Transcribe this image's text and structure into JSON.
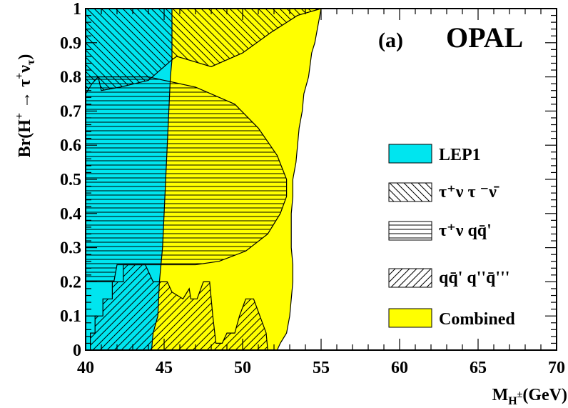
{
  "chart_data": {
    "type": "area",
    "title": "",
    "panel_label": "(a)",
    "experiment_label": "OPAL",
    "xlabel": "M",
    "xlabel_sub": "H",
    "xlabel_sup": "±",
    "xlabel_units": "(GeV)",
    "ylabel": "Br(H",
    "ylabel_sup": "+",
    "ylabel_arrow": " → τ",
    "ylabel_sup2": "+",
    "ylabel_nu": "ν",
    "ylabel_sub": "τ",
    "ylabel_close": ")",
    "xlim": [
      40,
      70
    ],
    "ylim": [
      0,
      1
    ],
    "x_ticks": [
      "40",
      "45",
      "50",
      "55",
      "60",
      "65",
      "70"
    ],
    "y_ticks": [
      "0",
      "0.1",
      "0.2",
      "0.3",
      "0.4",
      "0.5",
      "0.6",
      "0.7",
      "0.8",
      "0.9",
      "1"
    ],
    "colors": {
      "lep1": "#00e5ef",
      "combined": "#ffff00",
      "line": "#000000"
    },
    "legend_entries": {
      "lep1": "LEP1",
      "tautau": "τ⁺ν τ ⁻ν̄",
      "tauqq": "τ⁺ν qq̄'",
      "qqqq": "qq̄' q''q̄'''",
      "combined": "Combined"
    },
    "series": [
      {
        "name": "Combined",
        "style": "fill-yellow",
        "points": [
          [
            40,
            0
          ],
          [
            40,
            1
          ],
          [
            55,
            1
          ],
          [
            54.8,
            0.95
          ],
          [
            54.6,
            0.9
          ],
          [
            54.4,
            0.87
          ],
          [
            54.2,
            0.8
          ],
          [
            53.9,
            0.75
          ],
          [
            53.8,
            0.7
          ],
          [
            53.6,
            0.65
          ],
          [
            53.5,
            0.6
          ],
          [
            53.4,
            0.55
          ],
          [
            53.2,
            0.5
          ],
          [
            53.2,
            0.45
          ],
          [
            53.1,
            0.4
          ],
          [
            53.1,
            0.35
          ],
          [
            53.1,
            0.3
          ],
          [
            53.2,
            0.25
          ],
          [
            53.2,
            0.2
          ],
          [
            53.1,
            0.15
          ],
          [
            53.0,
            0.1
          ],
          [
            52.8,
            0.05
          ],
          [
            52.4,
            0.02
          ],
          [
            52.2,
            0
          ]
        ]
      },
      {
        "name": "LEP1",
        "style": "fill-cyan",
        "points": [
          [
            40,
            0
          ],
          [
            40,
            1
          ],
          [
            45.5,
            1
          ],
          [
            45.5,
            0.85
          ],
          [
            45.4,
            0.8
          ],
          [
            45.3,
            0.7
          ],
          [
            45.2,
            0.6
          ],
          [
            45.1,
            0.5
          ],
          [
            45,
            0.4
          ],
          [
            44.9,
            0.3
          ],
          [
            44.7,
            0.2
          ],
          [
            44.6,
            0.1
          ],
          [
            44.3,
            0.05
          ],
          [
            44.2,
            0
          ]
        ]
      },
      {
        "name": "τ⁺ν τ⁻ν̄",
        "style": "hatch-diag",
        "points": [
          [
            40,
            0.75
          ],
          [
            40,
            1
          ],
          [
            55,
            1
          ],
          [
            53.5,
            0.98
          ],
          [
            51.8,
            0.93
          ],
          [
            50,
            0.87
          ],
          [
            48,
            0.83
          ],
          [
            45.8,
            0.86
          ],
          [
            45.5,
            0.85
          ],
          [
            44,
            0.79
          ],
          [
            42.2,
            0.77
          ],
          [
            41,
            0.76
          ],
          [
            40.8,
            0.8
          ],
          [
            40.4,
            0.78
          ]
        ]
      },
      {
        "name": "τ⁺ν qq̄'",
        "style": "hatch-horiz",
        "points": [
          [
            40,
            0.75
          ],
          [
            40,
            0.8
          ],
          [
            44,
            0.8
          ],
          [
            45,
            0.79
          ],
          [
            47,
            0.77
          ],
          [
            49.5,
            0.72
          ],
          [
            51,
            0.65
          ],
          [
            52.2,
            0.57
          ],
          [
            52.8,
            0.5
          ],
          [
            52.8,
            0.45
          ],
          [
            52.4,
            0.4
          ],
          [
            51.6,
            0.34
          ],
          [
            50.2,
            0.29
          ],
          [
            48.5,
            0.26
          ],
          [
            47,
            0.25
          ],
          [
            45.5,
            0.25
          ],
          [
            44.8,
            0.25
          ],
          [
            42,
            0.25
          ],
          [
            41.8,
            0.2
          ],
          [
            40,
            0.2
          ]
        ]
      },
      {
        "name": "qq̄' q''q̄'''",
        "style": "hatch-anti",
        "points": [
          [
            40.3,
            0
          ],
          [
            40.3,
            0.05
          ],
          [
            40.6,
            0.05
          ],
          [
            40.6,
            0.1
          ],
          [
            41.1,
            0.1
          ],
          [
            41.1,
            0.15
          ],
          [
            41.7,
            0.15
          ],
          [
            41.7,
            0.2
          ],
          [
            42.4,
            0.2
          ],
          [
            42.4,
            0.25
          ],
          [
            43.8,
            0.25
          ],
          [
            44.3,
            0.2
          ],
          [
            45.2,
            0.2
          ],
          [
            45.5,
            0.17
          ],
          [
            46.2,
            0.15
          ],
          [
            46.6,
            0.18
          ],
          [
            46.7,
            0.15
          ],
          [
            47.1,
            0.15
          ],
          [
            47.5,
            0.2
          ],
          [
            47.9,
            0.2
          ],
          [
            48.1,
            0.1
          ],
          [
            48.3,
            0.02
          ],
          [
            48.7,
            0.02
          ],
          [
            49.0,
            0.05
          ],
          [
            49.5,
            0.05
          ],
          [
            49.8,
            0.1
          ],
          [
            50.2,
            0.15
          ],
          [
            50.7,
            0.15
          ],
          [
            51.1,
            0.1
          ],
          [
            51.5,
            0.05
          ],
          [
            51.6,
            0
          ]
        ]
      }
    ]
  }
}
